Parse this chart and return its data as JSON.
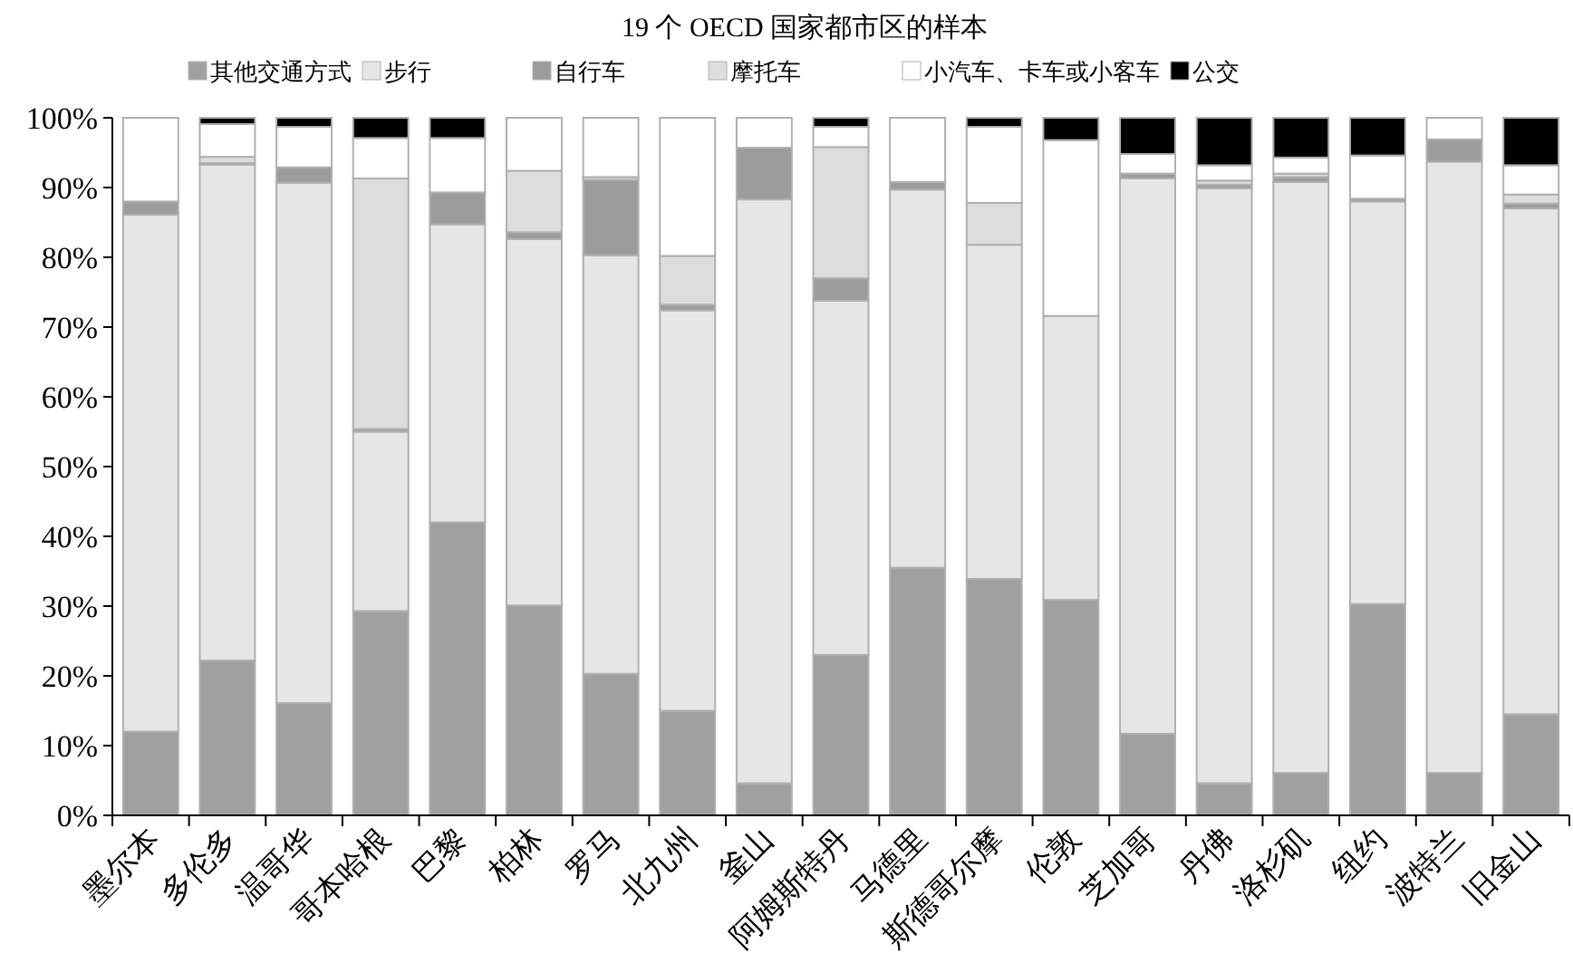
{
  "chart_data": {
    "type": "bar",
    "stacked": true,
    "title": "19 个 OECD 国家都市区的样本",
    "legend": "top",
    "categories": [
      "墨尔本",
      "多伦多",
      "温哥华",
      "哥本哈根",
      "巴黎",
      "柏林",
      "罗马",
      "北九州",
      "釜山",
      "阿姆斯特丹",
      "马德里",
      "斯德哥尔摩",
      "伦敦",
      "芝加哥",
      "丹佛",
      "洛杉矶",
      "纽约",
      "波特兰",
      "旧金山"
    ],
    "ylim": [
      0,
      100
    ],
    "yticks": [
      {
        "value": 0,
        "label": "0%"
      },
      {
        "value": 10,
        "label": "10%"
      },
      {
        "value": 20,
        "label": "20%"
      },
      {
        "value": 30,
        "label": "30%"
      },
      {
        "value": 40,
        "label": "40%"
      },
      {
        "value": 50,
        "label": "50%"
      },
      {
        "value": 60,
        "label": "60%"
      },
      {
        "value": 70,
        "label": "70%"
      },
      {
        "value": 80,
        "label": "80%"
      },
      {
        "value": 90,
        "label": "90%"
      },
      {
        "value": 100,
        "label": "100%"
      }
    ],
    "series": [
      {
        "name": "其他交通方式",
        "color": "#a0a0a0",
        "values": [
          12.0,
          22.2,
          16.1,
          29.3,
          42.0,
          30.1,
          20.3,
          15.0,
          4.6,
          23.0,
          35.5,
          33.9,
          30.9,
          11.7,
          4.6,
          6.1,
          30.3,
          6.1,
          14.5
        ]
      },
      {
        "name": "步行",
        "color": "#e6e6e6",
        "values": [
          74.1,
          71.1,
          74.6,
          25.7,
          42.7,
          52.5,
          60.0,
          57.4,
          83.7,
          50.8,
          54.2,
          47.9,
          40.7,
          79.6,
          85.3,
          84.7,
          57.7,
          87.6,
          72.5
        ]
      },
      {
        "name": "自行车",
        "color": "#9c9c9c",
        "values": [
          1.9,
          0.2,
          2.2,
          0.4,
          4.6,
          1.0,
          10.8,
          0.8,
          7.4,
          3.2,
          1.1,
          0,
          0,
          0.7,
          0.5,
          0.7,
          0.4,
          3.2,
          0.7
        ]
      },
      {
        "name": "摩托车",
        "color": "#dcdddd",
        "values": [
          0,
          0.9,
          0,
          35.9,
          0,
          8.8,
          0.4,
          7.0,
          0,
          18.8,
          0,
          6.0,
          0,
          0,
          0.6,
          0.5,
          0,
          0,
          1.3
        ]
      },
      {
        "name": "小汽车、卡车或小客车",
        "color": "#ffffff",
        "values": [
          12.0,
          4.7,
          5.8,
          5.8,
          7.8,
          7.6,
          8.5,
          19.8,
          4.3,
          2.9,
          9.2,
          10.9,
          25.2,
          2.8,
          2.2,
          2.3,
          6.2,
          3.1,
          4.2
        ]
      },
      {
        "name": "公交",
        "color": "#000000",
        "values": [
          0,
          0.9,
          1.3,
          2.9,
          2.9,
          0,
          0,
          0,
          0,
          1.3,
          0,
          1.3,
          3.2,
          5.2,
          6.8,
          5.7,
          5.4,
          0,
          6.8
        ]
      }
    ]
  }
}
